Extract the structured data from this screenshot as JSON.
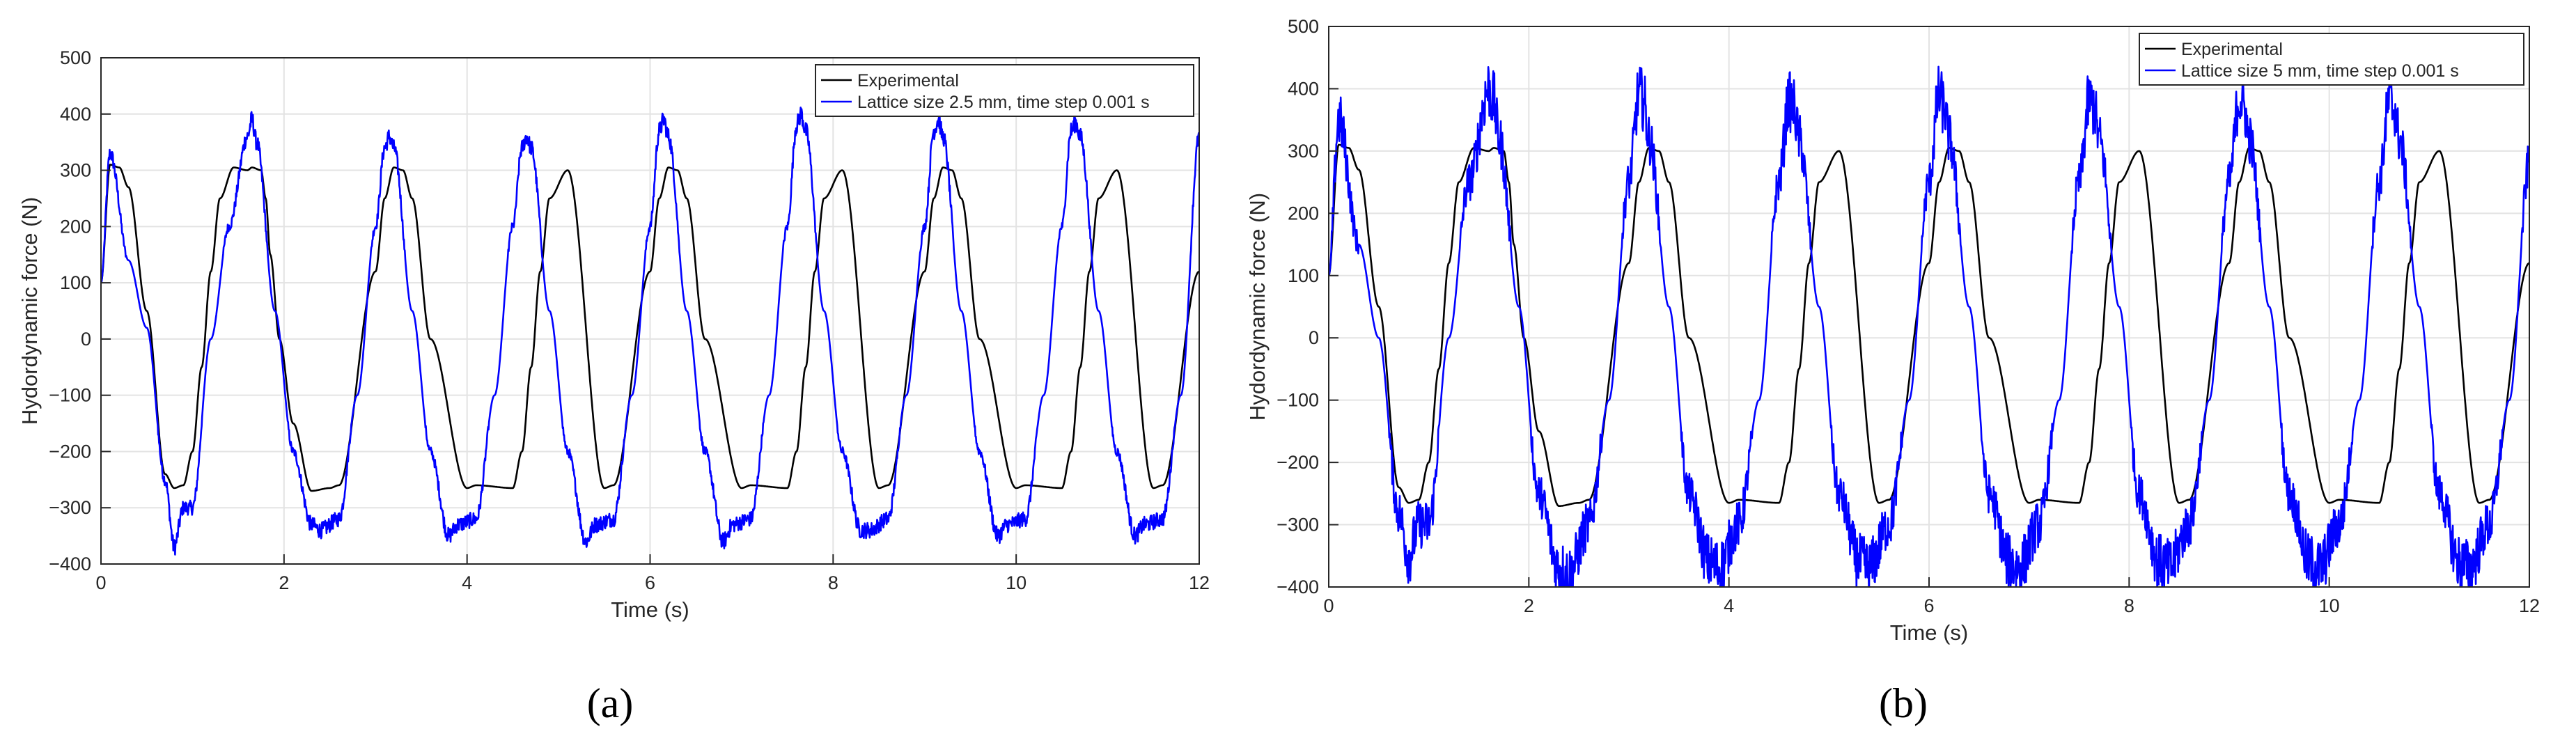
{
  "chart_data": [
    {
      "type": "line",
      "panel": "a",
      "caption": "(a)",
      "xlabel": "Time (s)",
      "ylabel": "Hydordynamic force (N)",
      "xlim": [
        0,
        12
      ],
      "ylim": [
        -400,
        500
      ],
      "xticks": [
        0,
        2,
        4,
        6,
        8,
        10,
        12
      ],
      "yticks": [
        -400,
        -300,
        -200,
        -100,
        0,
        100,
        200,
        300,
        400,
        500
      ],
      "grid": true,
      "legend_position": "top-right",
      "period": 1.5,
      "series": [
        {
          "name": "Experimental",
          "color": "#000000",
          "trough": -265,
          "peak": 300,
          "start_value": 310,
          "noise": 0,
          "x": [
            0,
            0.1,
            0.2,
            0.3,
            0.5,
            0.7,
            0.8,
            0.9,
            1.0,
            1.1,
            1.2,
            1.3,
            1.45,
            1.6,
            1.65,
            1.75,
            1.8,
            1.85,
            1.95,
            2.1,
            2.3,
            2.5,
            2.6,
            3.0,
            3.1,
            3.2,
            3.3,
            3.4,
            3.6,
            4.0,
            4.1,
            4.5,
            4.6,
            4.7,
            4.8,
            4.9,
            5.1,
            5.5,
            5.6,
            6.0,
            6.1,
            6.2,
            6.3,
            6.4,
            6.6,
            7.0,
            7.1,
            7.5,
            7.6,
            7.7,
            7.8,
            7.9,
            8.1,
            8.5,
            8.6,
            9.0,
            9.1,
            9.2,
            9.3,
            9.4,
            9.6,
            10.0,
            10.1,
            10.5,
            10.6,
            10.7,
            10.8,
            10.9,
            11.1,
            11.5,
            11.6,
            12.0
          ],
          "values": [
            100,
            310,
            305,
            270,
            50,
            -240,
            -265,
            -260,
            -200,
            -50,
            120,
            250,
            305,
            300,
            305,
            300,
            250,
            150,
            0,
            -150,
            -270,
            -265,
            -260,
            120,
            250,
            305,
            300,
            250,
            0,
            -265,
            -260,
            -265,
            -200,
            -50,
            120,
            250,
            300,
            -265,
            -260,
            120,
            250,
            305,
            300,
            250,
            0,
            -265,
            -260,
            -265,
            -200,
            -50,
            120,
            250,
            300,
            -265,
            -260,
            120,
            250,
            305,
            300,
            250,
            0,
            -265,
            -260,
            -265,
            -200,
            -50,
            120,
            250,
            300,
            -265,
            -260,
            120
          ]
        },
        {
          "name": "Lattice size 2.5 mm, time step 0.001 s",
          "color": "#0000ff",
          "trough": -350,
          "peak": 370,
          "start_value": 330,
          "noise": 15,
          "x": [
            0,
            0.1,
            0.3,
            0.5,
            0.7,
            0.8,
            0.9,
            1.0,
            1.2,
            1.4,
            1.6,
            1.65,
            1.7,
            1.9,
            2.1,
            2.3,
            2.4,
            2.6,
            2.8,
            3.0,
            3.1,
            3.15,
            3.2,
            3.4,
            3.6,
            3.8,
            3.9,
            4.1,
            4.3,
            4.5,
            4.6,
            4.65,
            4.7,
            4.9,
            5.1,
            5.3,
            5.4,
            5.6,
            5.8,
            6.0,
            6.1,
            6.15,
            6.2,
            6.4,
            6.6,
            6.8,
            6.9,
            7.1,
            7.3,
            7.5,
            7.6,
            7.65,
            7.7,
            7.9,
            8.1,
            8.3,
            8.4,
            8.6,
            8.8,
            9.0,
            9.1,
            9.15,
            9.2,
            9.4,
            9.6,
            9.8,
            9.9,
            10.1,
            10.3,
            10.5,
            10.6,
            10.65,
            10.7,
            10.9,
            11.1,
            11.3,
            11.4,
            11.6,
            11.8,
            12.0
          ],
          "values": [
            100,
            330,
            140,
            20,
            -250,
            -370,
            -300,
            -300,
            0,
            200,
            360,
            390,
            350,
            50,
            -200,
            -330,
            -340,
            -320,
            -100,
            200,
            340,
            360,
            340,
            50,
            -200,
            -350,
            -330,
            -320,
            -100,
            200,
            340,
            360,
            340,
            50,
            -200,
            -360,
            -330,
            -320,
            -100,
            200,
            370,
            390,
            360,
            50,
            -200,
            -360,
            -330,
            -320,
            -100,
            200,
            380,
            400,
            370,
            50,
            -200,
            -340,
            -340,
            -320,
            -100,
            200,
            370,
            390,
            360,
            50,
            -200,
            -350,
            -330,
            -320,
            -100,
            200,
            370,
            385,
            360,
            50,
            -200,
            -350,
            -330,
            -320,
            -100,
            360
          ]
        }
      ]
    },
    {
      "type": "line",
      "panel": "b",
      "caption": "(b)",
      "xlabel": "Time (s)",
      "ylabel": "Hydordynamic force (N)",
      "xlim": [
        0,
        12
      ],
      "ylim": [
        -400,
        500
      ],
      "xticks": [
        0,
        2,
        4,
        6,
        8,
        10,
        12
      ],
      "yticks": [
        -400,
        -300,
        -200,
        -100,
        0,
        100,
        200,
        300,
        400,
        500
      ],
      "grid": true,
      "legend_position": "top-right",
      "period": 1.5,
      "series": [
        {
          "name": "Experimental",
          "color": "#000000",
          "trough": -265,
          "peak": 300,
          "start_value": 310,
          "noise": 0,
          "x": [
            0,
            0.1,
            0.2,
            0.3,
            0.5,
            0.7,
            0.8,
            0.9,
            1.0,
            1.1,
            1.2,
            1.3,
            1.45,
            1.6,
            1.65,
            1.75,
            1.8,
            1.85,
            1.95,
            2.1,
            2.3,
            2.5,
            2.6,
            3.0,
            3.1,
            3.2,
            3.3,
            3.4,
            3.6,
            4.0,
            4.1,
            4.5,
            4.6,
            4.7,
            4.8,
            4.9,
            5.1,
            5.5,
            5.6,
            6.0,
            6.1,
            6.2,
            6.3,
            6.4,
            6.6,
            7.0,
            7.1,
            7.5,
            7.6,
            7.7,
            7.8,
            7.9,
            8.1,
            8.5,
            8.6,
            9.0,
            9.1,
            9.2,
            9.3,
            9.4,
            9.6,
            10.0,
            10.1,
            10.5,
            10.6,
            10.7,
            10.8,
            10.9,
            11.1,
            11.5,
            11.6,
            12.0
          ],
          "values": [
            100,
            310,
            305,
            270,
            50,
            -240,
            -265,
            -260,
            -200,
            -50,
            120,
            250,
            305,
            300,
            305,
            300,
            250,
            150,
            0,
            -150,
            -270,
            -265,
            -260,
            120,
            250,
            305,
            300,
            250,
            0,
            -265,
            -260,
            -265,
            -200,
            -50,
            120,
            250,
            300,
            -265,
            -260,
            120,
            250,
            305,
            300,
            250,
            0,
            -265,
            -260,
            -265,
            -200,
            -50,
            120,
            250,
            300,
            -265,
            -260,
            120,
            250,
            305,
            300,
            250,
            0,
            -265,
            -260,
            -265,
            -200,
            -50,
            120,
            250,
            300,
            -265,
            -260,
            120
          ]
        },
        {
          "name": "Lattice size 5 mm, time step 0.001 s",
          "color": "#0000ff",
          "trough": -300,
          "peak": 300,
          "start_value": 300,
          "noise": 45,
          "x": [
            0,
            0.1,
            0.3,
            0.5,
            0.7,
            0.8,
            0.9,
            1.0,
            1.2,
            1.4,
            1.6,
            1.65,
            1.7,
            1.9,
            2.1,
            2.3,
            2.4,
            2.6,
            2.8,
            3.0,
            3.1,
            3.15,
            3.2,
            3.4,
            3.6,
            3.8,
            3.9,
            4.1,
            4.3,
            4.5,
            4.6,
            4.65,
            4.7,
            4.9,
            5.1,
            5.3,
            5.4,
            5.6,
            5.8,
            6.0,
            6.1,
            6.15,
            6.2,
            6.4,
            6.6,
            6.8,
            6.9,
            7.1,
            7.3,
            7.5,
            7.6,
            7.65,
            7.7,
            7.9,
            8.1,
            8.3,
            8.4,
            8.6,
            8.8,
            9.0,
            9.1,
            9.15,
            9.2,
            9.4,
            9.6,
            9.8,
            9.9,
            10.1,
            10.3,
            10.5,
            10.6,
            10.65,
            10.7,
            10.9,
            11.1,
            11.3,
            11.4,
            11.6,
            11.8,
            12.0
          ],
          "values": [
            100,
            350,
            150,
            0,
            -280,
            -350,
            -300,
            -300,
            0,
            250,
            400,
            380,
            320,
            50,
            -250,
            -370,
            -380,
            -300,
            -100,
            250,
            390,
            380,
            320,
            50,
            -250,
            -360,
            -370,
            -300,
            -100,
            250,
            380,
            370,
            320,
            50,
            -250,
            -360,
            -370,
            -300,
            -100,
            250,
            390,
            370,
            320,
            50,
            -250,
            -360,
            -370,
            -300,
            -100,
            250,
            380,
            370,
            320,
            50,
            -250,
            -360,
            -370,
            -300,
            -100,
            250,
            385,
            370,
            320,
            50,
            -250,
            -360,
            -370,
            -300,
            -100,
            250,
            380,
            370,
            320,
            50,
            -250,
            -360,
            -370,
            -300,
            -100,
            280
          ]
        }
      ]
    }
  ]
}
